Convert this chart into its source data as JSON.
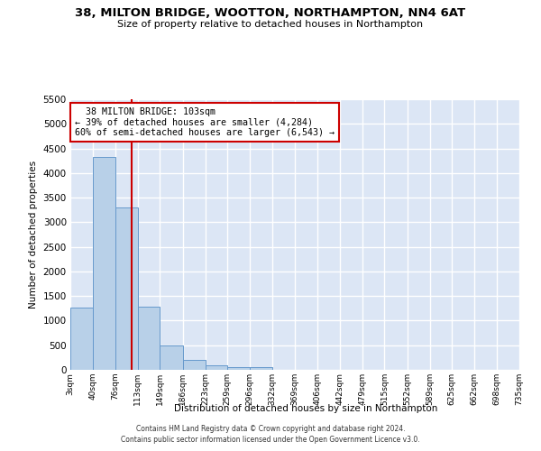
{
  "title": "38, MILTON BRIDGE, WOOTTON, NORTHAMPTON, NN4 6AT",
  "subtitle": "Size of property relative to detached houses in Northampton",
  "xlabel": "Distribution of detached houses by size in Northampton",
  "ylabel": "Number of detached properties",
  "annotation_line1": "  38 MILTON BRIDGE: 103sqm",
  "annotation_line2": "← 39% of detached houses are smaller (4,284)",
  "annotation_line3": "60% of semi-detached houses are larger (6,543) →",
  "property_size": 103,
  "bar_color": "#b8d0e8",
  "bar_edge_color": "#6699cc",
  "annotation_box_color": "#cc0000",
  "vline_color": "#cc0000",
  "background_color": "#dce6f5",
  "grid_color": "#ffffff",
  "bin_edges": [
    3,
    40,
    76,
    113,
    149,
    186,
    223,
    259,
    296,
    332,
    369,
    406,
    442,
    479,
    515,
    552,
    589,
    625,
    662,
    698,
    735
  ],
  "bin_labels": [
    "3sqm",
    "40sqm",
    "76sqm",
    "113sqm",
    "149sqm",
    "186sqm",
    "223sqm",
    "259sqm",
    "296sqm",
    "332sqm",
    "369sqm",
    "406sqm",
    "442sqm",
    "479sqm",
    "515sqm",
    "552sqm",
    "589sqm",
    "625sqm",
    "662sqm",
    "698sqm",
    "735sqm"
  ],
  "bar_heights": [
    1270,
    4330,
    3300,
    1280,
    490,
    210,
    90,
    60,
    60,
    0,
    0,
    0,
    0,
    0,
    0,
    0,
    0,
    0,
    0,
    0
  ],
  "ylim": [
    0,
    5500
  ],
  "yticks": [
    0,
    500,
    1000,
    1500,
    2000,
    2500,
    3000,
    3500,
    4000,
    4500,
    5000,
    5500
  ],
  "footer_line1": "Contains HM Land Registry data © Crown copyright and database right 2024.",
  "footer_line2": "Contains public sector information licensed under the Open Government Licence v3.0."
}
